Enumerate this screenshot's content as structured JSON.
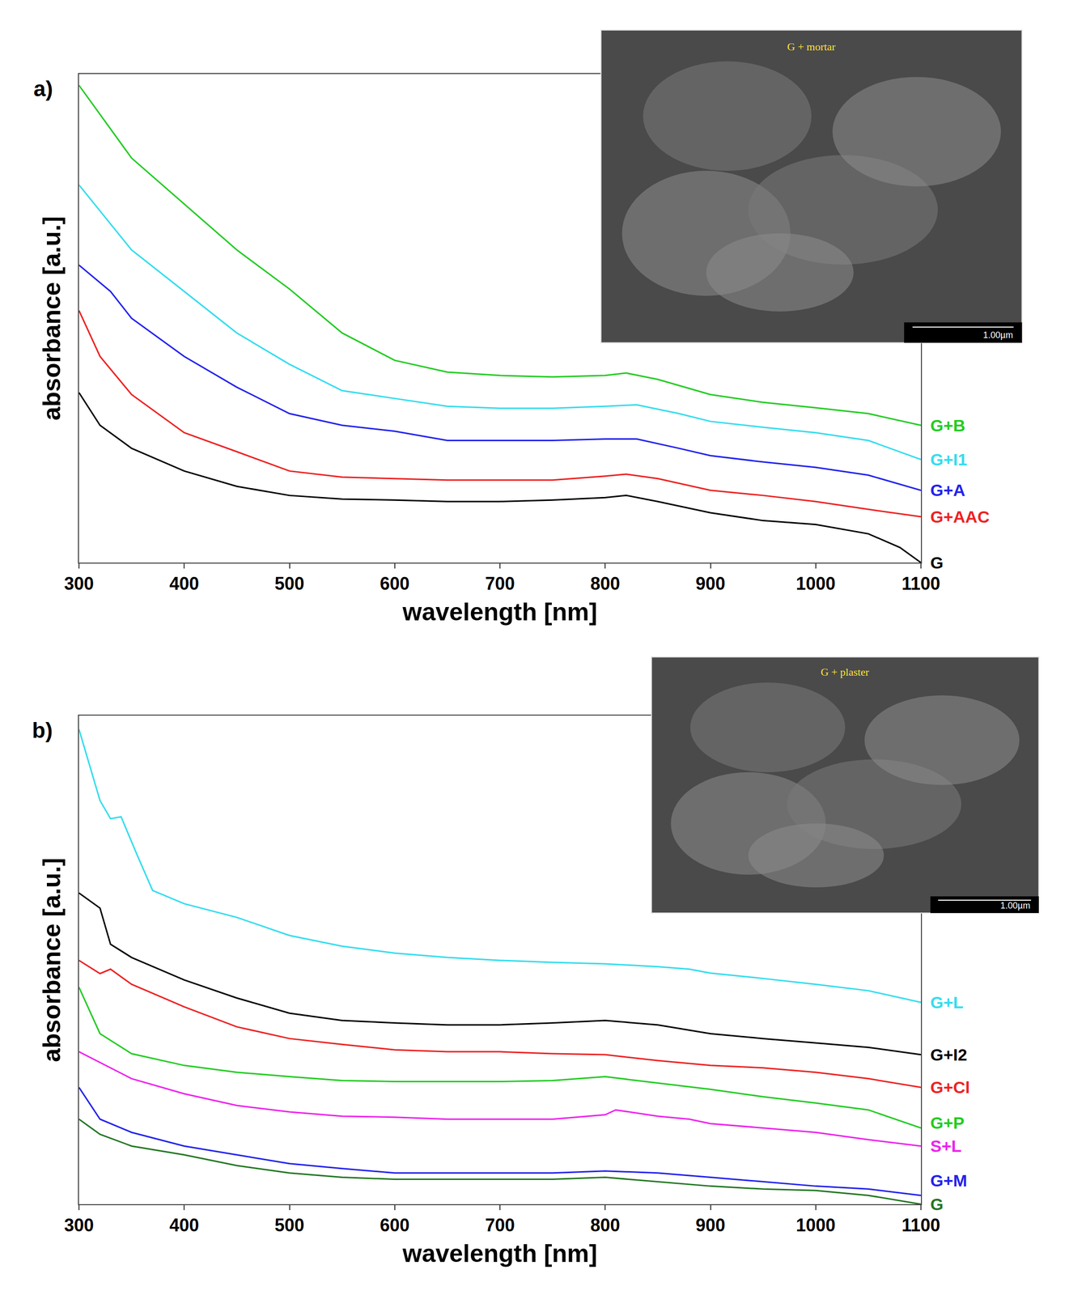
{
  "chart_data": [
    {
      "type": "line",
      "title": "a)",
      "x_label": "wavelength [nm]",
      "y_label": "absorbance [a.u.]",
      "xlim": [
        300,
        1100
      ],
      "ylim": [
        0,
        100
      ],
      "xticks": [
        300,
        400,
        500,
        600,
        700,
        800,
        900,
        1000,
        1100
      ],
      "tick_labels": "x",
      "grid": false,
      "annotations": [
        "G + mortar",
        "1.00µm"
      ],
      "series": [
        {
          "name": "G+B",
          "color": "#22cc22",
          "x": [
            300,
            350,
            400,
            450,
            500,
            550,
            600,
            650,
            700,
            750,
            800,
            820,
            850,
            900,
            950,
            1000,
            1050,
            1100
          ],
          "values": [
            97.7,
            82.8,
            73.4,
            64,
            56,
            47,
            41.4,
            39,
            38.3,
            38,
            38.3,
            38.8,
            37.5,
            34.4,
            32.8,
            31.7,
            30.5,
            28.1
          ]
        },
        {
          "name": "G+I1",
          "color": "#33ddee",
          "x": [
            300,
            350,
            400,
            450,
            500,
            550,
            600,
            650,
            700,
            750,
            800,
            830,
            870,
            900,
            950,
            1000,
            1050,
            1100
          ],
          "values": [
            77.3,
            64,
            55.5,
            47,
            40.6,
            35.2,
            33.6,
            32,
            31.6,
            31.6,
            32,
            32.3,
            30.5,
            28.9,
            27.7,
            26.6,
            25,
            21.1
          ]
        },
        {
          "name": "G+A",
          "color": "#2222ee",
          "x": [
            300,
            330,
            350,
            400,
            450,
            500,
            550,
            600,
            650,
            700,
            750,
            800,
            830,
            870,
            900,
            950,
            1000,
            1050,
            1100
          ],
          "values": [
            60.9,
            55.5,
            50,
            42.2,
            35.9,
            30.5,
            28.1,
            26.9,
            25,
            25,
            25,
            25.3,
            25.3,
            23.4,
            21.9,
            20.6,
            19.5,
            17.9,
            14.8
          ]
        },
        {
          "name": "G+AAC",
          "color": "#ee2222",
          "x": [
            300,
            320,
            350,
            400,
            450,
            500,
            550,
            600,
            650,
            700,
            750,
            800,
            820,
            850,
            900,
            950,
            1000,
            1050,
            1100
          ],
          "values": [
            51.6,
            42.2,
            34.4,
            26.6,
            22.7,
            18.75,
            17.5,
            17.2,
            16.9,
            16.9,
            16.9,
            17.7,
            18.1,
            17.2,
            14.8,
            13.75,
            12.5,
            10.9,
            9.4
          ]
        },
        {
          "name": "G",
          "color": "#000000",
          "x": [
            300,
            320,
            350,
            400,
            450,
            500,
            550,
            600,
            650,
            700,
            750,
            800,
            820,
            850,
            900,
            950,
            1000,
            1050,
            1080,
            1100
          ],
          "values": [
            34.8,
            28.1,
            23.4,
            18.75,
            15.6,
            13.75,
            13,
            12.8,
            12.5,
            12.5,
            12.8,
            13.3,
            13.75,
            12.5,
            10.2,
            8.6,
            7.8,
            5.9,
            3.1,
            0
          ]
        }
      ]
    },
    {
      "type": "line",
      "title": "b)",
      "x_label": "wavelength [nm]",
      "y_label": "absorbance [a.u.]",
      "xlim": [
        300,
        1100
      ],
      "ylim": [
        0,
        100
      ],
      "xticks": [
        300,
        400,
        500,
        600,
        700,
        800,
        900,
        1000,
        1100
      ],
      "tick_labels": "x",
      "grid": false,
      "annotations": [
        "G + plaster",
        "1.00µm"
      ],
      "series": [
        {
          "name": "G+L",
          "color": "#33ddee",
          "x": [
            300,
            320,
            330,
            340,
            355,
            370,
            400,
            450,
            500,
            550,
            600,
            650,
            700,
            750,
            800,
            850,
            880,
            900,
            950,
            1000,
            1050,
            1100
          ],
          "values": [
            97.2,
            82.6,
            78.9,
            79.3,
            71.6,
            64.2,
            61.5,
            58.7,
            55,
            52.8,
            51.4,
            50.5,
            49.9,
            49.5,
            49.2,
            48.6,
            48.1,
            47.3,
            46.2,
            45,
            43.7,
            41.3
          ]
        },
        {
          "name": "G+I2",
          "color": "#000000",
          "x": [
            300,
            320,
            330,
            350,
            400,
            450,
            500,
            550,
            600,
            650,
            700,
            750,
            800,
            850,
            900,
            950,
            1000,
            1050,
            1100
          ],
          "values": [
            63.7,
            60.6,
            53.2,
            50.5,
            45.9,
            42.2,
            39.1,
            37.6,
            37.1,
            36.7,
            36.7,
            37.1,
            37.6,
            36.7,
            34.9,
            33.9,
            33,
            32.1,
            30.6
          ]
        },
        {
          "name": "G+Cl",
          "color": "#ee2222",
          "x": [
            300,
            320,
            330,
            350,
            400,
            450,
            500,
            550,
            600,
            650,
            700,
            750,
            800,
            850,
            900,
            950,
            1000,
            1050,
            1100
          ],
          "values": [
            49.9,
            47.2,
            48.1,
            45,
            40.4,
            36.3,
            33.9,
            32.7,
            31.6,
            31.2,
            31.2,
            30.8,
            30.6,
            29.4,
            28.4,
            27.9,
            27,
            25.7,
            23.9
          ]
        },
        {
          "name": "G+P",
          "color": "#22cc22",
          "x": [
            300,
            320,
            350,
            400,
            450,
            500,
            550,
            600,
            650,
            700,
            750,
            800,
            850,
            900,
            950,
            1000,
            1050,
            1100
          ],
          "values": [
            44.4,
            34.9,
            30.8,
            28.4,
            27,
            26.1,
            25.3,
            25.1,
            25.1,
            25.1,
            25.3,
            26.1,
            24.8,
            23.5,
            22,
            20.7,
            19.3,
            15.6
          ]
        },
        {
          "name": "S+L",
          "color": "#ee22ee",
          "x": [
            300,
            350,
            400,
            450,
            500,
            550,
            600,
            650,
            700,
            750,
            800,
            810,
            850,
            880,
            900,
            950,
            1000,
            1050,
            1100
          ],
          "values": [
            31.2,
            25.7,
            22.6,
            20.2,
            18.9,
            18,
            17.8,
            17.4,
            17.4,
            17.4,
            18.3,
            19.3,
            18,
            17.4,
            16.5,
            15.6,
            14.7,
            13.2,
            11.9
          ]
        },
        {
          "name": "G+M",
          "color": "#2222ee",
          "x": [
            300,
            320,
            350,
            400,
            450,
            500,
            550,
            600,
            650,
            700,
            750,
            800,
            850,
            900,
            950,
            1000,
            1050,
            1100
          ],
          "values": [
            23.9,
            17.4,
            14.7,
            11.9,
            10.1,
            8.3,
            7.3,
            6.4,
            6.4,
            6.4,
            6.4,
            6.8,
            6.4,
            5.5,
            4.6,
            3.7,
            3.1,
            1.8
          ]
        },
        {
          "name": "G",
          "color": "#227722",
          "x": [
            300,
            320,
            350,
            400,
            450,
            500,
            550,
            600,
            650,
            700,
            750,
            800,
            850,
            900,
            950,
            1000,
            1050,
            1100
          ],
          "values": [
            17.4,
            14.3,
            11.9,
            10.1,
            7.9,
            6.4,
            5.5,
            5.1,
            5.1,
            5.1,
            5.1,
            5.5,
            4.6,
            3.7,
            3.1,
            2.8,
            1.8,
            0
          ]
        }
      ]
    }
  ]
}
